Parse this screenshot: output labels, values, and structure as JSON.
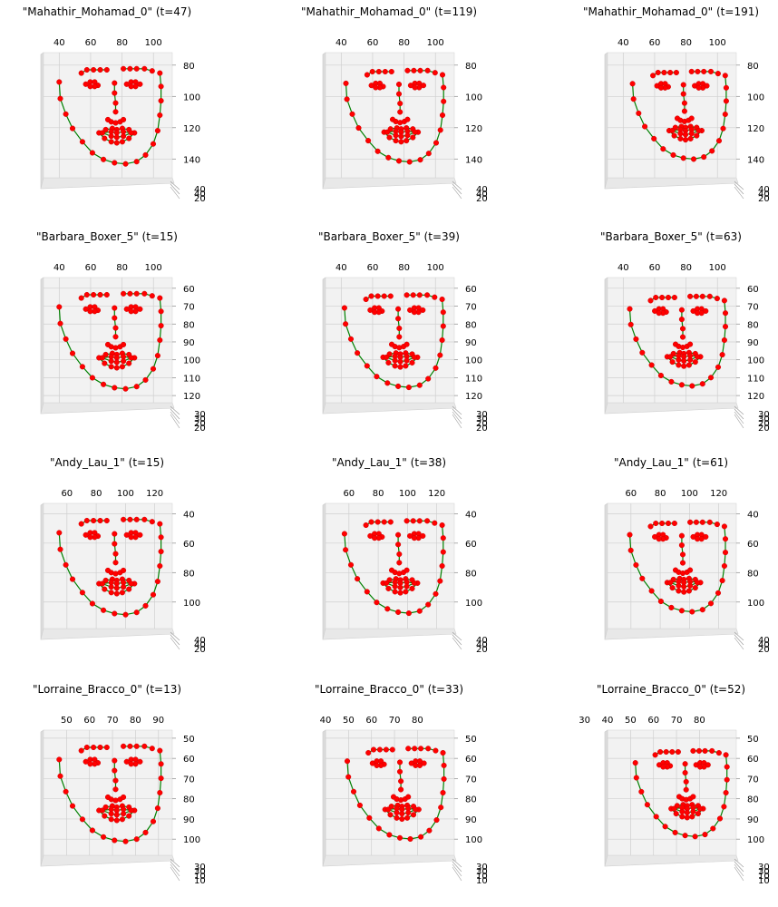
{
  "chart_data": {
    "type": "scatter",
    "style": {
      "edge_color": "#008000",
      "point_color": "#ff0000",
      "pane_color": "#f2f2f2",
      "grid_color": "#cfcfcf",
      "grid": true
    },
    "rows": [
      {
        "xticks": [
          [
            40,
            60,
            80,
            100
          ],
          [
            40,
            60,
            80,
            100
          ],
          [
            40,
            60,
            80,
            100
          ]
        ],
        "yticks": [
          80,
          100,
          120,
          140
        ],
        "xlim": [
          30,
          112
        ],
        "ylim": [
          72,
          152
        ],
        "zticks": [
          "40",
          "40",
          "20"
        ],
        "panels": [
          {
            "title": "\"Mahathir_Mohamad_0\" (t=47)",
            "s": 1.0,
            "dx": 0,
            "dy": 0
          },
          {
            "title": "\"Mahathir_Mohamad_0\" (t=119)",
            "s": 0.96,
            "dx": 3,
            "dy": 0
          },
          {
            "title": "\"Mahathir_Mohamad_0\" (t=191)",
            "s": 0.92,
            "dx": 6,
            "dy": -1
          }
        ]
      },
      {
        "xticks": [
          [
            40,
            60,
            80,
            100
          ],
          [
            40,
            60,
            80,
            100
          ],
          [
            40,
            60,
            80,
            100
          ]
        ],
        "yticks": [
          60,
          70,
          80,
          90,
          100,
          110,
          120
        ],
        "xlim": [
          30,
          112
        ],
        "ylim": [
          54,
          124
        ],
        "zticks": [
          "30",
          "30",
          "20",
          "20"
        ],
        "panels": [
          {
            "title": "\"Barbara_Boxer_5\" (t=15)",
            "s": 1.0,
            "dx": 0,
            "dy": 0
          },
          {
            "title": "\"Barbara_Boxer_5\" (t=39)",
            "s": 0.97,
            "dx": 2,
            "dy": 0
          },
          {
            "title": "\"Barbara_Boxer_5\" (t=63)",
            "s": 0.94,
            "dx": 4,
            "dy": 0
          }
        ]
      },
      {
        "xticks": [
          [
            60,
            80,
            100,
            120
          ],
          [
            60,
            80,
            100,
            120
          ],
          [
            60,
            80,
            100,
            120
          ]
        ],
        "yticks": [
          40,
          60,
          80,
          100
        ],
        "xlim": [
          44,
          132
        ],
        "ylim": [
          33,
          118
        ],
        "zticks": [
          "40",
          "40",
          "20"
        ],
        "panels": [
          {
            "title": "\"Andy_Lau_1\" (t=15)",
            "s": 1.0,
            "dx": 0,
            "dy": 0
          },
          {
            "title": "\"Andy_Lau_1\" (t=38)",
            "s": 0.97,
            "dx": 2,
            "dy": 0
          },
          {
            "title": "\"Andy_Lau_1\" (t=61)",
            "s": 0.94,
            "dx": 4,
            "dy": 0
          }
        ]
      },
      {
        "xticks": [
          [
            50,
            60,
            70,
            80,
            90
          ],
          [
            40,
            50,
            60,
            70,
            80
          ],
          [
            30,
            40,
            50,
            60,
            70,
            80
          ]
        ],
        "yticks": [
          50,
          60,
          70,
          80,
          90,
          100
        ],
        "xlim": [
          40,
          96
        ],
        "ylim": [
          46,
          108
        ],
        "zticks": [
          "30",
          "30",
          "10",
          "10"
        ],
        "panels": [
          {
            "title": "\"Lorraine_Bracco_0\" (t=13)",
            "s": 1.0,
            "dx": 0,
            "dy": 0
          },
          {
            "title": "\"Lorraine_Bracco_0\" (t=33)",
            "s": 0.95,
            "dx": 4,
            "dy": 0
          },
          {
            "title": "\"Lorraine_Bracco_0\" (t=52)",
            "s": 0.9,
            "dx": 8,
            "dy": 0
          }
        ]
      }
    ],
    "landmarks": [
      [
        0.06,
        0.2
      ],
      [
        0.07,
        0.35
      ],
      [
        0.12,
        0.49
      ],
      [
        0.18,
        0.62
      ],
      [
        0.27,
        0.74
      ],
      [
        0.36,
        0.84
      ],
      [
        0.46,
        0.9
      ],
      [
        0.56,
        0.93
      ],
      [
        0.66,
        0.94
      ],
      [
        0.76,
        0.92
      ],
      [
        0.84,
        0.86
      ],
      [
        0.91,
        0.76
      ],
      [
        0.95,
        0.64
      ],
      [
        0.97,
        0.5
      ],
      [
        0.98,
        0.37
      ],
      [
        0.98,
        0.24
      ],
      [
        0.97,
        0.12
      ],
      [
        0.26,
        0.12
      ],
      [
        0.31,
        0.09
      ],
      [
        0.37,
        0.09
      ],
      [
        0.43,
        0.09
      ],
      [
        0.49,
        0.09
      ],
      [
        0.64,
        0.08
      ],
      [
        0.7,
        0.08
      ],
      [
        0.76,
        0.08
      ],
      [
        0.83,
        0.08
      ],
      [
        0.9,
        0.1
      ],
      [
        0.56,
        0.21
      ],
      [
        0.56,
        0.3
      ],
      [
        0.57,
        0.39
      ],
      [
        0.57,
        0.47
      ],
      [
        0.5,
        0.54
      ],
      [
        0.53,
        0.56
      ],
      [
        0.57,
        0.57
      ],
      [
        0.61,
        0.56
      ],
      [
        0.64,
        0.54
      ],
      [
        0.3,
        0.22
      ],
      [
        0.34,
        0.2
      ],
      [
        0.38,
        0.2
      ],
      [
        0.41,
        0.23
      ],
      [
        0.38,
        0.24
      ],
      [
        0.34,
        0.24
      ],
      [
        0.67,
        0.22
      ],
      [
        0.71,
        0.2
      ],
      [
        0.75,
        0.2
      ],
      [
        0.79,
        0.22
      ],
      [
        0.75,
        0.24
      ],
      [
        0.71,
        0.24
      ],
      [
        0.42,
        0.66
      ],
      [
        0.48,
        0.63
      ],
      [
        0.54,
        0.62
      ],
      [
        0.58,
        0.63
      ],
      [
        0.63,
        0.62
      ],
      [
        0.69,
        0.63
      ],
      [
        0.74,
        0.66
      ],
      [
        0.69,
        0.71
      ],
      [
        0.63,
        0.74
      ],
      [
        0.58,
        0.75
      ],
      [
        0.53,
        0.74
      ],
      [
        0.47,
        0.71
      ],
      [
        0.45,
        0.66
      ],
      [
        0.53,
        0.65
      ],
      [
        0.58,
        0.66
      ],
      [
        0.64,
        0.65
      ],
      [
        0.71,
        0.66
      ],
      [
        0.64,
        0.69
      ],
      [
        0.58,
        0.7
      ],
      [
        0.53,
        0.69
      ]
    ]
  }
}
